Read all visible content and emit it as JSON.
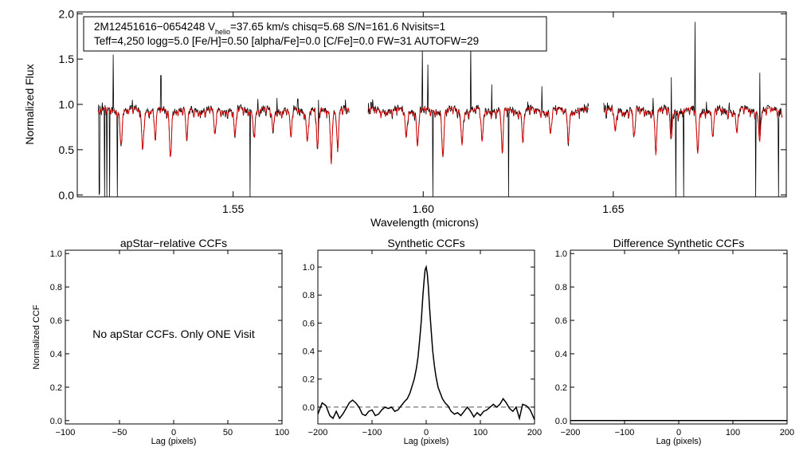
{
  "colors": {
    "model": "#e00000",
    "observed": "#000000",
    "axes": "#000000",
    "zero_line": "#555555"
  },
  "header": {
    "line1": "2M12451616−0654248  V",
    "vhelio_sub": "helio",
    "line1_rest": "=37.65 km/s  chisq=5.68  S/N=161.6  Nvisits=1",
    "line2": "Teff=4,250 logg=5.0 [Fe/H]=0.50 [alpha/Fe]=0.0 [C/Fe]=0.0 FW=31 AUTOFW=29"
  },
  "chart_data": [
    {
      "id": "spectrum",
      "type": "line",
      "title": "",
      "xlabel": "Wavelength (microns)",
      "ylabel": "Normalized Flux",
      "xlim": [
        1.509,
        1.6955
      ],
      "ylim": [
        -0.02,
        2.02
      ],
      "xticks": [
        1.55,
        1.6,
        1.65
      ],
      "xtick_labels": [
        "1.55",
        "1.60",
        "1.65"
      ],
      "yticks": [
        0.0,
        0.5,
        1.0,
        1.5,
        2.0
      ],
      "ytick_labels": [
        "0.0",
        "0.5",
        "1.0",
        "1.5",
        "2.0"
      ],
      "segments": [
        [
          1.5145,
          1.5805
        ],
        [
          1.5855,
          1.6435
        ],
        [
          1.6475,
          1.6945
        ]
      ],
      "continuum": 0.94,
      "series": [
        {
          "name": "observed",
          "color": "#000000"
        },
        {
          "name": "model",
          "color": "#e00000"
        }
      ],
      "emission_spikes": [
        {
          "x": 1.5185,
          "y": 1.55
        },
        {
          "x": 1.5235,
          "y": 1.05
        },
        {
          "x": 1.531,
          "y": 1.32
        },
        {
          "x": 1.5565,
          "y": 1.06
        },
        {
          "x": 1.5615,
          "y": 1.07
        },
        {
          "x": 1.567,
          "y": 1.06
        },
        {
          "x": 1.5725,
          "y": 1.05
        },
        {
          "x": 1.5998,
          "y": 1.61
        },
        {
          "x": 1.6012,
          "y": 1.44
        },
        {
          "x": 1.6125,
          "y": 1.65
        },
        {
          "x": 1.618,
          "y": 1.22
        },
        {
          "x": 1.6275,
          "y": 1.03
        },
        {
          "x": 1.6312,
          "y": 1.2
        },
        {
          "x": 1.6605,
          "y": 1.07
        },
        {
          "x": 1.6653,
          "y": 1.3
        },
        {
          "x": 1.6715,
          "y": 1.91
        },
        {
          "x": 1.6745,
          "y": 1.03
        },
        {
          "x": 1.6805,
          "y": 1.02
        },
        {
          "x": 1.6885,
          "y": 1.35
        }
      ],
      "dropouts": [
        1.5148,
        1.5162,
        1.5168,
        1.5175,
        1.5195,
        1.5545,
        1.6025,
        1.6225,
        1.6665,
        1.6685,
        1.6875,
        1.6935
      ],
      "absorption_lines": [
        {
          "x": 1.5205,
          "d": 0.35
        },
        {
          "x": 1.5262,
          "d": 0.42
        },
        {
          "x": 1.5295,
          "d": 0.3
        },
        {
          "x": 1.5335,
          "d": 0.5
        },
        {
          "x": 1.5378,
          "d": 0.35
        },
        {
          "x": 1.5452,
          "d": 0.28
        },
        {
          "x": 1.5505,
          "d": 0.3
        },
        {
          "x": 1.5555,
          "d": 0.25
        },
        {
          "x": 1.5605,
          "d": 0.22
        },
        {
          "x": 1.5652,
          "d": 0.32
        },
        {
          "x": 1.5695,
          "d": 0.33
        },
        {
          "x": 1.5722,
          "d": 0.45
        },
        {
          "x": 1.5758,
          "d": 0.5
        },
        {
          "x": 1.5775,
          "d": 0.4
        },
        {
          "x": 1.5955,
          "d": 0.3
        },
        {
          "x": 1.5985,
          "d": 0.4
        },
        {
          "x": 1.6052,
          "d": 0.5
        },
        {
          "x": 1.6102,
          "d": 0.35
        },
        {
          "x": 1.6155,
          "d": 0.36
        },
        {
          "x": 1.6208,
          "d": 0.45
        },
        {
          "x": 1.6262,
          "d": 0.32
        },
        {
          "x": 1.6335,
          "d": 0.25
        },
        {
          "x": 1.6382,
          "d": 0.3
        },
        {
          "x": 1.6505,
          "d": 0.25
        },
        {
          "x": 1.6555,
          "d": 0.3
        },
        {
          "x": 1.6612,
          "d": 0.42
        },
        {
          "x": 1.6652,
          "d": 0.3
        },
        {
          "x": 1.6722,
          "d": 0.48
        },
        {
          "x": 1.6762,
          "d": 0.3
        },
        {
          "x": 1.6825,
          "d": 0.25
        },
        {
          "x": 1.6885,
          "d": 0.3
        }
      ]
    },
    {
      "id": "apstar_ccf",
      "type": "line",
      "title": "apStar−relative CCFs",
      "xlabel": "Lag (pixels)",
      "ylabel": "Normalized CCF",
      "xlim": [
        -100,
        100
      ],
      "ylim": [
        -0.02,
        1.02
      ],
      "xticks": [
        -100,
        -50,
        0,
        50,
        100
      ],
      "xtick_labels": [
        "−100",
        "−50",
        "0",
        "50",
        "100"
      ],
      "yticks": [
        0.0,
        0.2,
        0.4,
        0.6,
        0.8,
        1.0
      ],
      "ytick_labels": [
        "0.0",
        "0.2",
        "0.4",
        "0.6",
        "0.8",
        "1.0"
      ],
      "annotation": "No apStar CCFs.  Only ONE Visit",
      "series": []
    },
    {
      "id": "synthetic_ccf",
      "type": "line",
      "title": "Synthetic CCFs",
      "xlabel": "Lag (pixels)",
      "ylabel": "",
      "xlim": [
        -200,
        200
      ],
      "ylim": [
        -0.12,
        1.12
      ],
      "xticks": [
        -200,
        -100,
        0,
        100,
        200
      ],
      "xtick_labels": [
        "−200",
        "−100",
        "0",
        "100",
        "200"
      ],
      "yticks": [
        0.0,
        0.2,
        0.4,
        0.6,
        0.8,
        1.0
      ],
      "ytick_labels": [
        "0.0",
        "0.2",
        "0.4",
        "0.6",
        "0.8",
        "1.0"
      ],
      "zero_line": 0.0,
      "series": [
        {
          "name": "ccf",
          "x": [
            -200,
            -192,
            -185,
            -178,
            -172,
            -166,
            -160,
            -154,
            -148,
            -142,
            -136,
            -130,
            -124,
            -118,
            -112,
            -106,
            -100,
            -94,
            -88,
            -82,
            -76,
            -70,
            -64,
            -58,
            -52,
            -46,
            -40,
            -35,
            -30,
            -26,
            -22,
            -18,
            -15,
            -12,
            -9,
            -6,
            -4,
            -2,
            0,
            2,
            4,
            6,
            9,
            12,
            15,
            18,
            22,
            26,
            30,
            35,
            40,
            46,
            52,
            58,
            64,
            70,
            76,
            82,
            88,
            94,
            100,
            106,
            112,
            118,
            124,
            130,
            136,
            142,
            148,
            154,
            160,
            166,
            172,
            178,
            185,
            192,
            200
          ],
          "y": [
            -0.05,
            0.03,
            0.01,
            -0.06,
            -0.08,
            -0.03,
            -0.08,
            -0.05,
            -0.01,
            0.03,
            0.05,
            0.03,
            0.0,
            -0.05,
            -0.06,
            -0.03,
            -0.02,
            -0.06,
            -0.05,
            -0.02,
            0.0,
            -0.01,
            0.0,
            -0.03,
            -0.02,
            0.01,
            0.04,
            0.06,
            0.1,
            0.15,
            0.2,
            0.28,
            0.36,
            0.48,
            0.62,
            0.8,
            0.9,
            0.98,
            1.0,
            0.95,
            0.86,
            0.72,
            0.56,
            0.4,
            0.3,
            0.22,
            0.14,
            0.1,
            0.06,
            0.03,
            0.01,
            -0.03,
            -0.05,
            -0.04,
            -0.06,
            -0.03,
            0.0,
            -0.03,
            -0.07,
            -0.04,
            -0.06,
            -0.03,
            -0.02,
            0.0,
            0.02,
            0.0,
            0.02,
            0.06,
            0.03,
            -0.01,
            -0.03,
            0.0,
            -0.08,
            0.02,
            0.01,
            -0.02,
            -0.09
          ]
        }
      ]
    },
    {
      "id": "difference_ccf",
      "type": "line",
      "title": "Difference Synthetic CCFs",
      "xlabel": "Lag (pixels)",
      "ylabel": "",
      "xlim": [
        -200,
        200
      ],
      "ylim": [
        -0.02,
        1.02
      ],
      "xticks": [
        -200,
        -100,
        0,
        100,
        200
      ],
      "xtick_labels": [
        "−200",
        "−100",
        "0",
        "100",
        "200"
      ],
      "yticks": [
        0.0,
        0.2,
        0.4,
        0.6,
        0.8,
        1.0
      ],
      "ytick_labels": [
        "0.0",
        "0.2",
        "0.4",
        "0.6",
        "0.8",
        "1.0"
      ],
      "series": [
        {
          "name": "difference",
          "x": [
            -200,
            200
          ],
          "y": [
            0.0,
            0.0
          ]
        }
      ]
    }
  ]
}
